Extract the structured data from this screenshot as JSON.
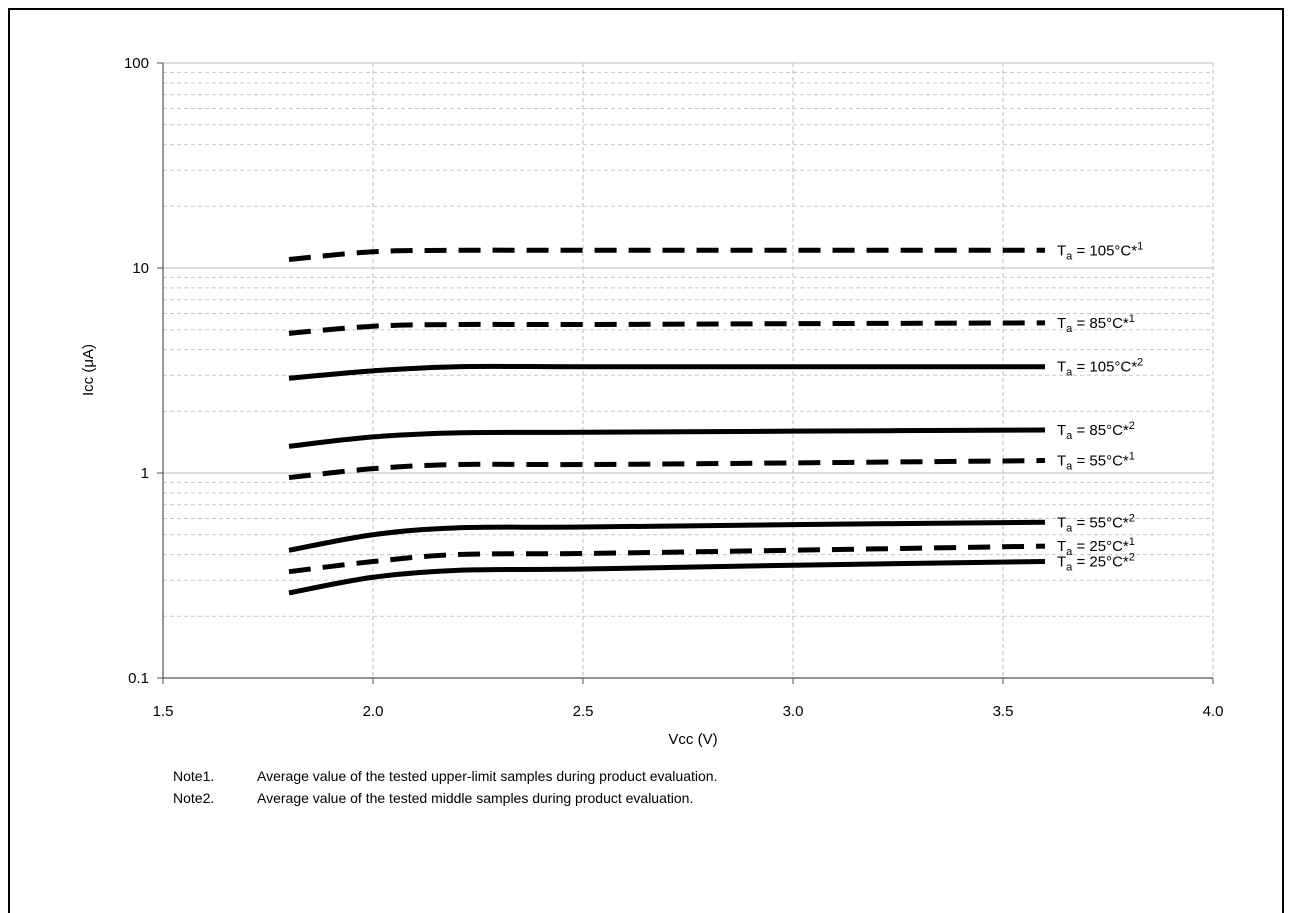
{
  "chart_data": {
    "type": "line",
    "title": "",
    "xlabel": "Vcc (V)",
    "ylabel": "Icc (μA)",
    "xlim": [
      1.5,
      4.0
    ],
    "ylim": [
      0.1,
      100
    ],
    "y_scale": "log",
    "x_ticks": [
      "1.5",
      "2.0",
      "2.5",
      "3.0",
      "3.5",
      "4.0"
    ],
    "y_ticks": [
      "0.1",
      "1",
      "10",
      "100"
    ],
    "grid": true,
    "series": [
      {
        "name": "Ta = 105°C*1",
        "label_main": "T",
        "label_sub": "a",
        "label_rest": " = 105°C*",
        "label_sup": "1",
        "style": "dashed",
        "x": [
          1.8,
          2.0,
          2.2,
          2.5,
          3.0,
          3.6
        ],
        "y": [
          11.0,
          12.0,
          12.2,
          12.2,
          12.2,
          12.2
        ]
      },
      {
        "name": "Ta = 85°C*1",
        "label_main": "T",
        "label_sub": "a",
        "label_rest": " = 85°C*",
        "label_sup": "1",
        "style": "dashed",
        "x": [
          1.8,
          2.0,
          2.2,
          2.5,
          3.0,
          3.6
        ],
        "y": [
          4.8,
          5.2,
          5.3,
          5.3,
          5.35,
          5.4
        ]
      },
      {
        "name": "Ta = 105°C*2",
        "label_main": "T",
        "label_sub": "a",
        "label_rest": " = 105°C*",
        "label_sup": "2",
        "style": "solid",
        "x": [
          1.8,
          2.0,
          2.2,
          2.5,
          3.0,
          3.6
        ],
        "y": [
          2.9,
          3.15,
          3.3,
          3.3,
          3.3,
          3.3
        ]
      },
      {
        "name": "Ta = 85°C*2",
        "label_main": "T",
        "label_sub": "a",
        "label_rest": " = 85°C*",
        "label_sup": "2",
        "style": "solid",
        "x": [
          1.8,
          2.0,
          2.2,
          2.5,
          3.0,
          3.6
        ],
        "y": [
          1.35,
          1.5,
          1.57,
          1.58,
          1.6,
          1.62
        ]
      },
      {
        "name": "Ta = 55°C*1",
        "label_main": "T",
        "label_sub": "a",
        "label_rest": " = 55°C*",
        "label_sup": "1",
        "style": "dashed",
        "x": [
          1.8,
          2.0,
          2.2,
          2.5,
          3.0,
          3.6
        ],
        "y": [
          0.95,
          1.05,
          1.1,
          1.1,
          1.12,
          1.15
        ]
      },
      {
        "name": "Ta = 55°C*2",
        "label_main": "T",
        "label_sub": "a",
        "label_rest": " = 55°C*",
        "label_sup": "2",
        "style": "solid",
        "x": [
          1.8,
          2.0,
          2.2,
          2.5,
          3.0,
          3.6
        ],
        "y": [
          0.42,
          0.5,
          0.54,
          0.545,
          0.56,
          0.575
        ]
      },
      {
        "name": "Ta = 25°C*1",
        "label_main": "T",
        "label_sub": "a",
        "label_rest": " = 25°C*",
        "label_sup": "1",
        "style": "dashed",
        "x": [
          1.8,
          2.0,
          2.2,
          2.5,
          3.0,
          3.6
        ],
        "y": [
          0.33,
          0.37,
          0.4,
          0.405,
          0.42,
          0.44
        ]
      },
      {
        "name": "Ta = 25°C*2",
        "label_main": "T",
        "label_sub": "a",
        "label_rest": " = 25°C*",
        "label_sup": "2",
        "style": "solid",
        "x": [
          1.8,
          2.0,
          2.2,
          2.5,
          3.0,
          3.6
        ],
        "y": [
          0.26,
          0.31,
          0.335,
          0.34,
          0.355,
          0.37
        ]
      }
    ]
  },
  "notes": [
    {
      "id": "Note1.",
      "text": "Average value of the tested upper-limit samples during product evaluation."
    },
    {
      "id": "Note2.",
      "text": "Average value of the tested middle samples during product evaluation."
    }
  ]
}
